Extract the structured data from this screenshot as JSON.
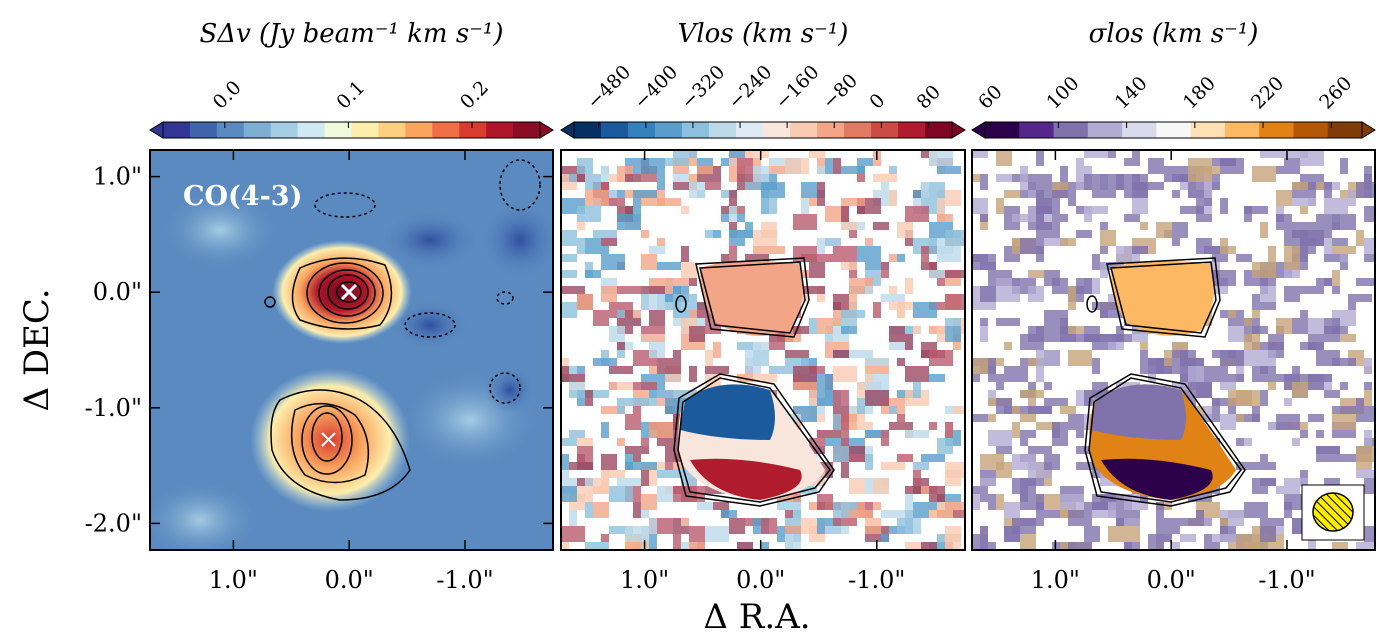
{
  "chart_data": [
    {
      "type": "heatmap",
      "colorbar_label": "SΔv (Jy beam⁻¹ km s⁻¹)",
      "annotation": "CO(4-3)",
      "clim": [
        -0.05,
        0.255
      ],
      "cticks": [
        {
          "value": 0,
          "label": "0.0"
        },
        0.1,
        0.2
      ],
      "colormap": [
        "#313695",
        "#4064ab",
        "#5b8ac0",
        "#7eaed3",
        "#a5cde4",
        "#cfe8f2",
        "#f0f9dc",
        "#fdeeae",
        "#fdcf80",
        "#f9a45f",
        "#ee6e46",
        "#d73c2f",
        "#b0162a",
        "#8a0d26"
      ],
      "xlabel": "Δ R.A.",
      "ylabel": "Δ DEC.",
      "xlim": [
        1.72,
        -1.76
      ],
      "ylim": [
        -2.23,
        1.23
      ],
      "xticks": [
        {
          "value": 1,
          "label": "1.0\""
        },
        {
          "value": 0,
          "label": "0.0\""
        },
        {
          "value": -1,
          "label": "-1.0\""
        }
      ],
      "yticks": [
        {
          "value": 1,
          "label": "1.0\""
        },
        {
          "value": 0,
          "label": "0.0\""
        },
        {
          "value": -1,
          "label": "-1.0\""
        },
        {
          "value": -2,
          "label": "-2.0\""
        }
      ]
    },
    {
      "type": "heatmap",
      "colorbar_label": "Vlos (km s⁻¹)",
      "clim": [
        -522,
        120
      ],
      "cticks": [
        {
          "value": -480,
          "label": "−480"
        },
        {
          "value": -400,
          "label": "−400"
        },
        {
          "value": -320,
          "label": "−320"
        },
        {
          "value": -240,
          "label": "−240"
        },
        {
          "value": -160,
          "label": "−160"
        },
        {
          "value": -80,
          "label": "−80"
        },
        0,
        80
      ],
      "colormap": [
        "#053061",
        "#1b5a9c",
        "#3581bb",
        "#5a9dcb",
        "#8dc0dd",
        "#bcd9ea",
        "#dfebf4",
        "#f8e6dc",
        "#f9cbb2",
        "#f2a587",
        "#e07a62",
        "#cb4b45",
        "#b01c2e",
        "#7e0523"
      ],
      "xlim": [
        1.72,
        -1.76
      ],
      "ylim": [
        -2.23,
        1.23
      ],
      "xticks": [
        {
          "value": 1,
          "label": "1.0\""
        },
        {
          "value": 0,
          "label": "0.0\""
        },
        {
          "value": -1,
          "label": "-1.0\""
        }
      ]
    },
    {
      "type": "heatmap",
      "colorbar_label": "σlos (km s⁻¹)",
      "clim": [
        57,
        278
      ],
      "cticks": [
        60,
        100,
        140,
        180,
        220,
        260
      ],
      "colormap": [
        "#2d004b",
        "#542788",
        "#8073ac",
        "#b2abd2",
        "#d8daeb",
        "#f7f7f7",
        "#fee0b6",
        "#fdb863",
        "#e08214",
        "#b35806",
        "#7f3b08"
      ],
      "xlim": [
        1.72,
        -1.76
      ],
      "ylim": [
        -2.23,
        1.23
      ],
      "xticks": [
        {
          "value": 1,
          "label": "1.0\""
        },
        {
          "value": 0,
          "label": "0.0\""
        },
        {
          "value": -1,
          "label": "-1.0\""
        }
      ]
    }
  ]
}
